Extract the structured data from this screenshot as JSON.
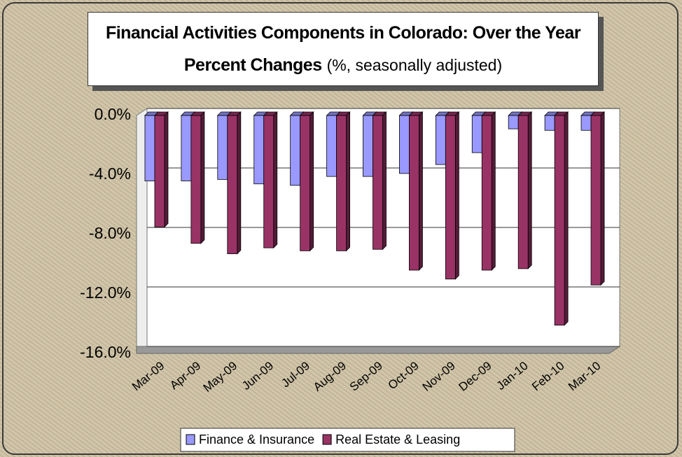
{
  "chart_data": {
    "type": "bar",
    "title": "Financial Activities Components in Colorado:  Over the Year Percent Changes",
    "subtitle": "(%, seasonally adjusted)",
    "categories": [
      "Mar-09",
      "Apr-09",
      "May-09",
      "Jun-09",
      "Jul-09",
      "Aug-09",
      "Sep-09",
      "Oct-09",
      "Nov-09",
      "Dec-09",
      "Jan-10",
      "Feb-10",
      "Mar-10"
    ],
    "series": [
      {
        "name": "Finance & Insurance",
        "color": "#9999ff",
        "values": [
          -4.4,
          -4.4,
          -4.3,
          -4.6,
          -4.7,
          -4.1,
          -4.1,
          -3.9,
          -3.3,
          -2.5,
          -0.9,
          -1.0,
          -1.0
        ]
      },
      {
        "name": "Real Estate & Leasing",
        "color": "#993366",
        "values": [
          -7.5,
          -8.6,
          -9.3,
          -8.9,
          -9.1,
          -9.1,
          -9.0,
          -10.4,
          -11.0,
          -10.4,
          -10.3,
          -14.1,
          -11.4
        ]
      }
    ],
    "ylim": [
      -16,
      0
    ],
    "yticks": [
      {
        "value": -16,
        "label": "-16.0%"
      },
      {
        "value": -12,
        "label": "-12.0%"
      },
      {
        "value": -8,
        "label": "-8.0%"
      },
      {
        "value": -4,
        "label": "-4.0%"
      },
      {
        "value": 0,
        "label": "0.0%"
      }
    ],
    "grid": true,
    "legend": "bottom"
  }
}
